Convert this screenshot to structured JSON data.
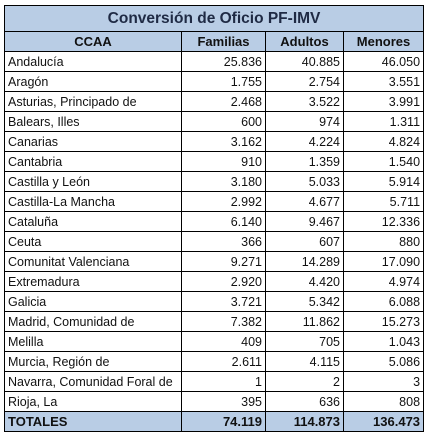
{
  "title": "Conversión de Oficio PF-IMV",
  "columns": [
    "CCAA",
    "Familias",
    "Adultos",
    "Menores"
  ],
  "rows": [
    {
      "ccaa": "Andalucía",
      "familias": "25.836",
      "adultos": "40.885",
      "menores": "46.050"
    },
    {
      "ccaa": "Aragón",
      "familias": "1.755",
      "adultos": "2.754",
      "menores": "3.551"
    },
    {
      "ccaa": "Asturias, Principado de",
      "familias": "2.468",
      "adultos": "3.522",
      "menores": "3.991"
    },
    {
      "ccaa": "Balears, Illes",
      "familias": "600",
      "adultos": "974",
      "menores": "1.311"
    },
    {
      "ccaa": "Canarias",
      "familias": "3.162",
      "adultos": "4.224",
      "menores": "4.824"
    },
    {
      "ccaa": "Cantabria",
      "familias": "910",
      "adultos": "1.359",
      "menores": "1.540"
    },
    {
      "ccaa": "Castilla y León",
      "familias": "3.180",
      "adultos": "5.033",
      "menores": "5.914"
    },
    {
      "ccaa": "Castilla-La Mancha",
      "familias": "2.992",
      "adultos": "4.677",
      "menores": "5.711"
    },
    {
      "ccaa": "Cataluña",
      "familias": "6.140",
      "adultos": "9.467",
      "menores": "12.336"
    },
    {
      "ccaa": "Ceuta",
      "familias": "366",
      "adultos": "607",
      "menores": "880"
    },
    {
      "ccaa": "Comunitat Valenciana",
      "familias": "9.271",
      "adultos": "14.289",
      "menores": "17.090"
    },
    {
      "ccaa": "Extremadura",
      "familias": "2.920",
      "adultos": "4.420",
      "menores": "4.974"
    },
    {
      "ccaa": "Galicia",
      "familias": "3.721",
      "adultos": "5.342",
      "menores": "6.088"
    },
    {
      "ccaa": "Madrid, Comunidad de",
      "familias": "7.382",
      "adultos": "11.862",
      "menores": "15.273"
    },
    {
      "ccaa": "Melilla",
      "familias": "409",
      "adultos": "705",
      "menores": "1.043"
    },
    {
      "ccaa": "Murcia, Región de",
      "familias": "2.611",
      "adultos": "4.115",
      "menores": "5.086"
    },
    {
      "ccaa": "Navarra, Comunidad Foral de",
      "familias": "1",
      "adultos": "2",
      "menores": "3"
    },
    {
      "ccaa": "Rioja, La",
      "familias": "395",
      "adultos": "636",
      "menores": "808"
    }
  ],
  "totals": {
    "ccaa": "TOTALES",
    "familias": "74.119",
    "adultos": "114.873",
    "menores": "136.473"
  },
  "colors": {
    "header_fill": "#b9cde5",
    "border": "#000000"
  }
}
